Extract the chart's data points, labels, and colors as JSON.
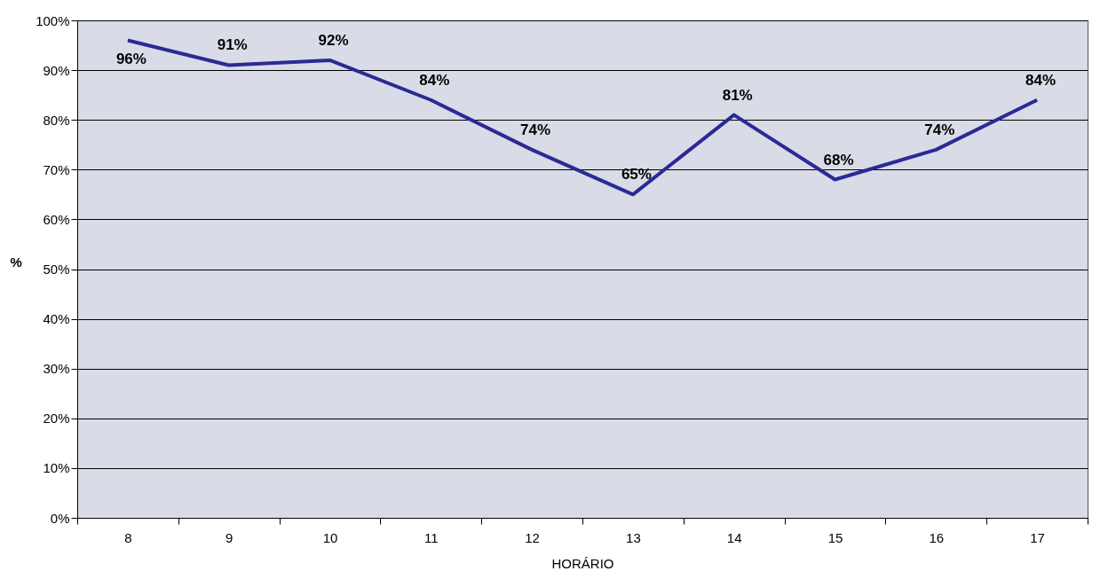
{
  "chart_data": {
    "type": "line",
    "xlabel": "HORÁRIO",
    "ylabel": "%",
    "categories": [
      "8",
      "9",
      "10",
      "11",
      "12",
      "13",
      "14",
      "15",
      "16",
      "17"
    ],
    "series": [
      {
        "color": "#2a2a96",
        "values": [
          96,
          91,
          92,
          84,
          74,
          65,
          81,
          68,
          74,
          84
        ],
        "value_labels": [
          "96%",
          "91%",
          "92%",
          "84%",
          "74%",
          "65%",
          "81%",
          "68%",
          "74%",
          "84%"
        ]
      }
    ],
    "ylim": [
      0,
      100
    ],
    "yticks": [
      {
        "value": 0,
        "label": "0%"
      },
      {
        "value": 10,
        "label": "10%"
      },
      {
        "value": 20,
        "label": "20%"
      },
      {
        "value": 30,
        "label": "30%"
      },
      {
        "value": 40,
        "label": "40%"
      },
      {
        "value": 50,
        "label": "50%"
      },
      {
        "value": 60,
        "label": "60%"
      },
      {
        "value": 70,
        "label": "70%"
      },
      {
        "value": 80,
        "label": "80%"
      },
      {
        "value": 90,
        "label": "90%"
      },
      {
        "value": 100,
        "label": "100%"
      }
    ],
    "grid": "y"
  }
}
